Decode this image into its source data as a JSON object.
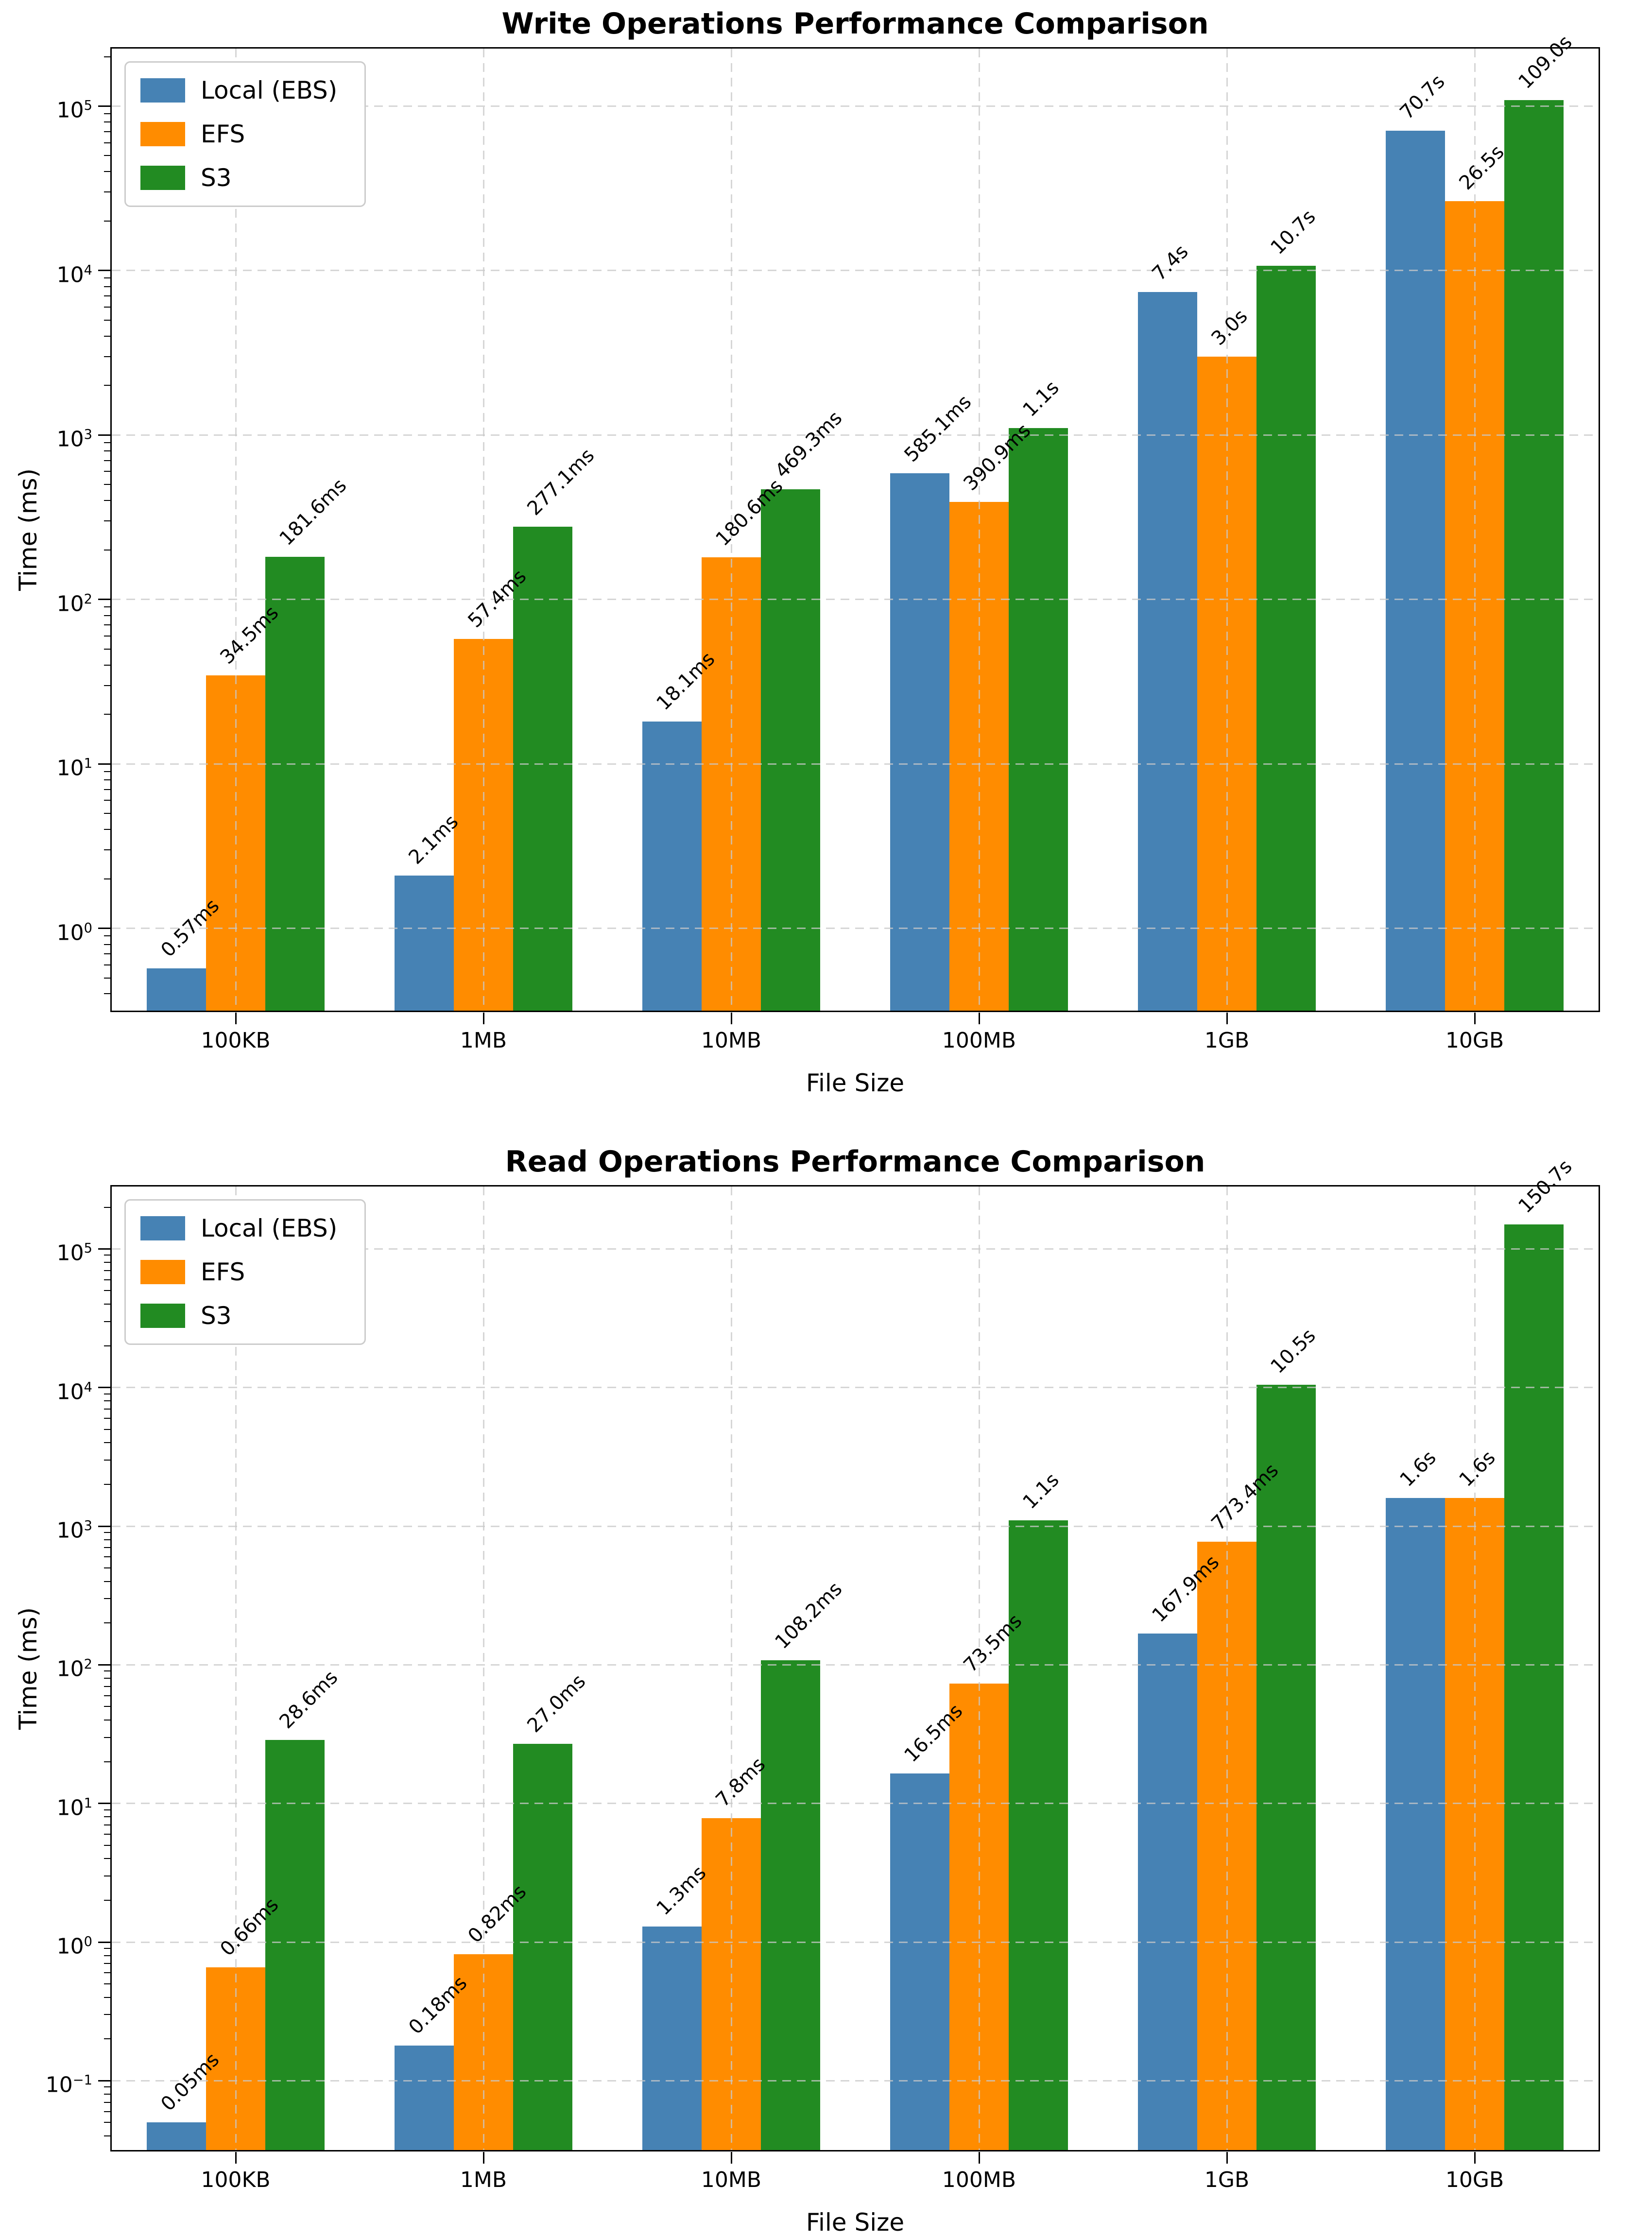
{
  "chart_data": [
    {
      "type": "bar",
      "title": "Write Operations Performance Comparison",
      "xlabel": "File Size",
      "ylabel": "Time (ms)",
      "yscale": "log",
      "ylim_log10": [
        -0.5,
        5.35
      ],
      "ytick_exponents": [
        0,
        1,
        2,
        3,
        4,
        5
      ],
      "categories": [
        "100KB",
        "1MB",
        "10MB",
        "100MB",
        "1GB",
        "10GB"
      ],
      "grid": "dashed",
      "legend_position": "upper left",
      "series": [
        {
          "name": "Local (EBS)",
          "color": "#4682B4",
          "values_ms": [
            0.57,
            2.1,
            18.1,
            585.1,
            7400,
            70700
          ],
          "labels": [
            "0.57ms",
            "2.1ms",
            "18.1ms",
            "585.1ms",
            "7.4s",
            "70.7s"
          ]
        },
        {
          "name": "EFS",
          "color": "#FF8C00",
          "values_ms": [
            34.5,
            57.4,
            180.6,
            390.9,
            3000,
            26500
          ],
          "labels": [
            "34.5ms",
            "57.4ms",
            "180.6ms",
            "390.9ms",
            "3.0s",
            "26.5s"
          ]
        },
        {
          "name": "S3",
          "color": "#228B22",
          "values_ms": [
            181.6,
            277.1,
            469.3,
            1100,
            10700,
            109000
          ],
          "labels": [
            "181.6ms",
            "277.1ms",
            "469.3ms",
            "1.1s",
            "10.7s",
            "109.0s"
          ]
        }
      ]
    },
    {
      "type": "bar",
      "title": "Read Operations Performance Comparison",
      "xlabel": "File Size",
      "ylabel": "Time (ms)",
      "yscale": "log",
      "ylim_log10": [
        -1.5,
        5.45
      ],
      "ytick_exponents": [
        -1,
        0,
        1,
        2,
        3,
        4,
        5
      ],
      "categories": [
        "100KB",
        "1MB",
        "10MB",
        "100MB",
        "1GB",
        "10GB"
      ],
      "grid": "dashed",
      "legend_position": "upper left",
      "series": [
        {
          "name": "Local (EBS)",
          "color": "#4682B4",
          "values_ms": [
            0.05,
            0.18,
            1.3,
            16.5,
            167.9,
            1600
          ],
          "labels": [
            "0.05ms",
            "0.18ms",
            "1.3ms",
            "16.5ms",
            "167.9ms",
            "1.6s"
          ]
        },
        {
          "name": "EFS",
          "color": "#FF8C00",
          "values_ms": [
            0.66,
            0.82,
            7.8,
            73.5,
            773.4,
            1600
          ],
          "labels": [
            "0.66ms",
            "0.82ms",
            "7.8ms",
            "73.5ms",
            "773.4ms",
            "1.6s"
          ]
        },
        {
          "name": "S3",
          "color": "#228B22",
          "values_ms": [
            28.6,
            27.0,
            108.2,
            1100,
            10500,
            150700
          ],
          "labels": [
            "28.6ms",
            "27.0ms",
            "108.2ms",
            "1.1s",
            "10.5s",
            "150.7s"
          ]
        }
      ]
    }
  ]
}
